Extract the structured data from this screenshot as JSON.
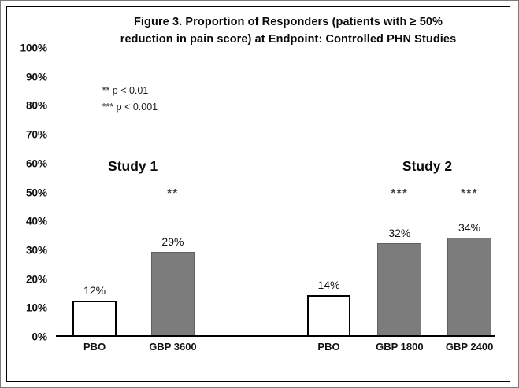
{
  "figure": {
    "title_line1": "Figure 3. Proportion of Responders (patients with ≥ 50%",
    "title_line2": "reduction in pain score) at Endpoint: Controlled PHN Studies"
  },
  "colors": {
    "bar_gray": "#7c7c7c",
    "bar_white": "#ffffff",
    "frame": "#000000"
  },
  "chart_data": {
    "type": "bar",
    "title": "Figure 3. Proportion of Responders (patients with ≥ 50% reduction in pain score) at Endpoint: Controlled PHN Studies",
    "xlabel": "",
    "ylabel": "",
    "ylim": [
      0,
      100
    ],
    "grid": false,
    "legend": null,
    "yticks": [
      "100%",
      "90%",
      "80%",
      "70%",
      "60%",
      "50%",
      "40%",
      "30%",
      "20%",
      "10%",
      "0%"
    ],
    "categories": [
      "PBO",
      "GBP 3600",
      "PBO",
      "GBP 1800",
      "GBP 2400"
    ],
    "values": [
      12,
      29,
      14,
      32,
      34
    ],
    "bars": [
      {
        "label": "PBO",
        "value": 12,
        "value_label": "12%",
        "fill": "white",
        "sig": "",
        "group": "Study 1"
      },
      {
        "label": "GBP 3600",
        "value": 29,
        "value_label": "29%",
        "fill": "gray",
        "sig": "**",
        "group": "Study 1"
      },
      {
        "label": "PBO",
        "value": 14,
        "value_label": "14%",
        "fill": "white",
        "sig": "",
        "group": "Study 2"
      },
      {
        "label": "GBP 1800",
        "value": 32,
        "value_label": "32%",
        "fill": "gray",
        "sig": "***",
        "group": "Study 2"
      },
      {
        "label": "GBP 2400",
        "value": 34,
        "value_label": "34%",
        "fill": "gray",
        "sig": "***",
        "group": "Study 2"
      }
    ],
    "group_labels": [
      "Study  1",
      "Study 2"
    ],
    "annotations": [
      "** p < 0.01",
      "*** p < 0.001"
    ],
    "layout": {
      "bar_centers": [
        0.088,
        0.266,
        0.621,
        0.782,
        0.941
      ],
      "bar_width_frac": 0.1,
      "group_label_x": [
        0.175,
        0.845
      ],
      "group_label_bottom_pct": 56,
      "sig_bottom_pct": 47,
      "note_x": 0.105,
      "note_tops_pct": [
        13,
        18.5
      ]
    }
  }
}
